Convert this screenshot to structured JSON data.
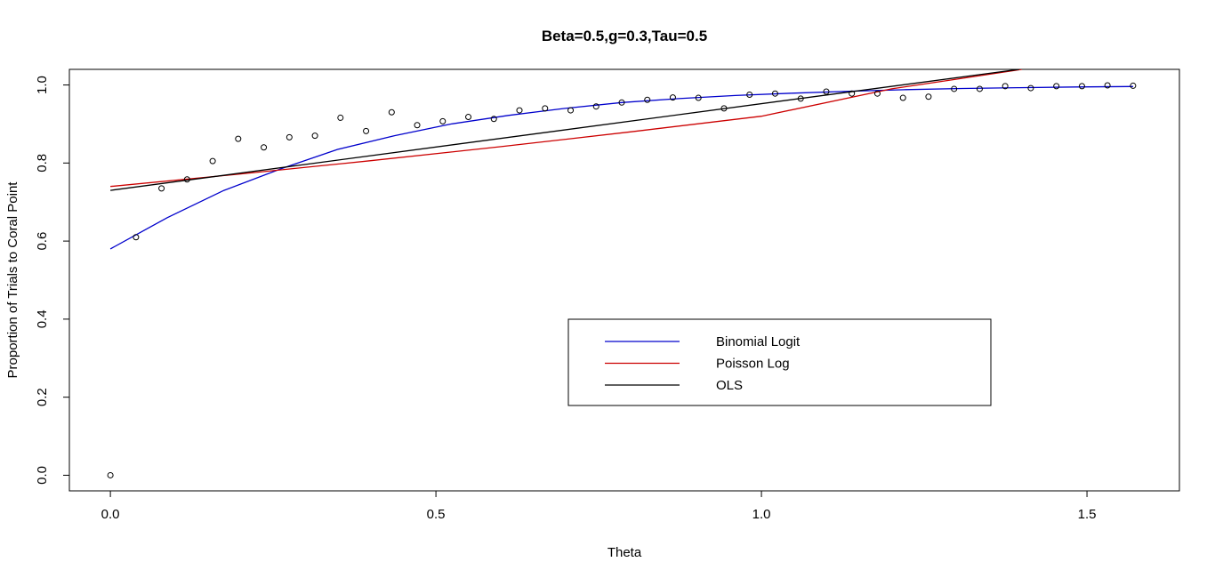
{
  "chart_data": {
    "type": "scatter",
    "title": "Beta=0.5,g=0.3,Tau=0.5",
    "xlabel": "Theta",
    "ylabel": "Proportion of Trials to Coral Point",
    "xlim": [
      -0.063,
      1.642
    ],
    "ylim": [
      -0.04,
      1.04
    ],
    "x_ticks": [
      "0.0",
      "0.5",
      "1.0",
      "1.5"
    ],
    "y_ticks": [
      "0.0",
      "0.2",
      "0.4",
      "0.6",
      "0.8",
      "1.0"
    ],
    "grid": false,
    "legend_position": "bottom-center",
    "points": {
      "name": "",
      "x": [
        0.0,
        0.0393,
        0.0785,
        0.1178,
        0.1571,
        0.1963,
        0.2356,
        0.2749,
        0.3142,
        0.3534,
        0.3927,
        0.432,
        0.4712,
        0.5105,
        0.5498,
        0.589,
        0.6283,
        0.6676,
        0.7069,
        0.7461,
        0.7854,
        0.8247,
        0.8639,
        0.9032,
        0.9425,
        0.9817,
        1.021,
        1.0603,
        1.0996,
        1.1388,
        1.1781,
        1.2174,
        1.2566,
        1.2959,
        1.3352,
        1.3744,
        1.4137,
        1.453,
        1.4923,
        1.5315,
        1.5708
      ],
      "y": [
        0.0,
        0.61,
        0.735,
        0.758,
        0.805,
        0.862,
        0.84,
        0.866,
        0.87,
        0.916,
        0.882,
        0.93,
        0.897,
        0.907,
        0.918,
        0.913,
        0.935,
        0.94,
        0.935,
        0.945,
        0.955,
        0.962,
        0.968,
        0.967,
        0.94,
        0.975,
        0.978,
        0.965,
        0.983,
        0.978,
        0.978,
        0.967,
        0.97,
        0.99,
        0.99,
        0.997,
        0.992,
        0.997,
        0.997,
        0.999,
        0.998
      ]
    },
    "series": [
      {
        "name": "Binomial Logit",
        "color": "#0000cc",
        "x": [
          0.0,
          0.0873,
          0.1745,
          0.2618,
          0.3491,
          0.4363,
          0.5236,
          0.6109,
          0.6981,
          0.7854,
          0.8727,
          0.9599,
          1.0472,
          1.1345,
          1.2217,
          1.309,
          1.3963,
          1.4835,
          1.5708
        ],
        "y": [
          0.58,
          0.66,
          0.73,
          0.785,
          0.835,
          0.87,
          0.9,
          0.922,
          0.94,
          0.955,
          0.965,
          0.973,
          0.979,
          0.984,
          0.988,
          0.991,
          0.993,
          0.995,
          0.996
        ]
      },
      {
        "name": "Poisson Log",
        "color": "#cc0000",
        "x": [
          0.0,
          0.2,
          0.4,
          0.6,
          0.8,
          1.0,
          1.2,
          1.3,
          1.4
        ],
        "y": [
          0.74,
          0.772,
          0.806,
          0.842,
          0.88,
          0.92,
          0.99,
          1.015,
          1.04
        ]
      },
      {
        "name": "OLS",
        "color": "#000000",
        "x": [
          0.0,
          1.396
        ],
        "y": [
          0.73,
          1.04
        ]
      }
    ]
  }
}
